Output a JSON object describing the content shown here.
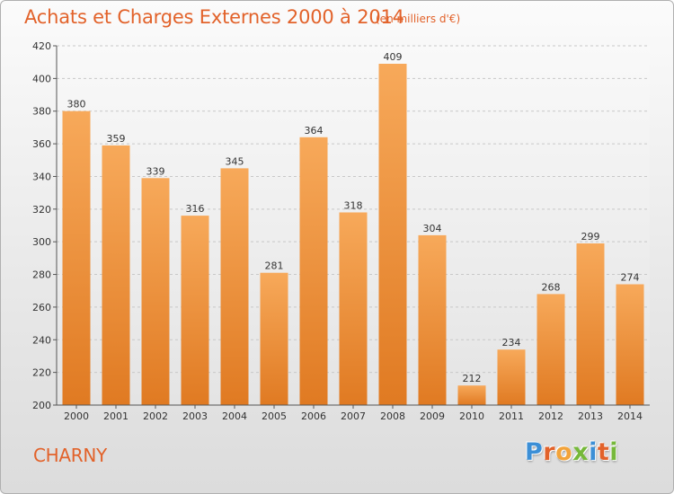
{
  "header": {
    "title": "Achats et Charges Externes 2000 à 2014",
    "subtitle": "(en milliers d'€)"
  },
  "footer": {
    "location": "CHARNY",
    "brand": {
      "text": "Proxiti",
      "letters": [
        {
          "char": "P",
          "color": "#3c8fd6"
        },
        {
          "char": "r",
          "color": "#e2622a"
        },
        {
          "char": "o",
          "color": "#f2a33a"
        },
        {
          "char": "x",
          "color": "#76b83a"
        },
        {
          "char": "i",
          "color": "#3c8fd6"
        },
        {
          "char": "t",
          "color": "#e2622a"
        },
        {
          "char": "i",
          "color": "#76b83a"
        }
      ]
    }
  },
  "colors": {
    "accent": "#e2622a",
    "bar_light": "#f7a95a",
    "bar_dark": "#e07a22"
  },
  "chart_data": {
    "type": "bar",
    "title": "Achats et Charges Externes 2000 à 2014",
    "subtitle": "(en milliers d'€)",
    "categories": [
      "2000",
      "2001",
      "2002",
      "2003",
      "2004",
      "2005",
      "2006",
      "2007",
      "2008",
      "2009",
      "2010",
      "2011",
      "2012",
      "2013",
      "2014"
    ],
    "values": [
      380,
      359,
      339,
      316,
      345,
      281,
      364,
      318,
      409,
      304,
      212,
      234,
      268,
      299,
      274
    ],
    "ylim": [
      200,
      420
    ],
    "yticks": [
      200,
      220,
      240,
      260,
      280,
      300,
      320,
      340,
      360,
      380,
      400,
      420
    ],
    "grid": "horizontal-dashed",
    "legend": "none",
    "data_labels": true
  }
}
